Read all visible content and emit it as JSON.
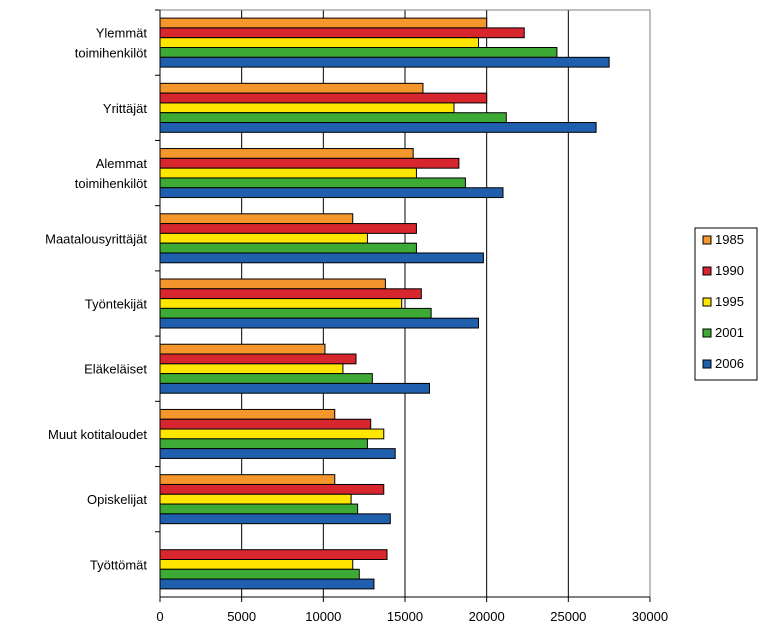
{
  "chart_data": {
    "type": "bar",
    "orientation": "horizontal",
    "categories": [
      [
        "Ylemmät",
        "toimihenkilöt"
      ],
      [
        "Yrittäjät"
      ],
      [
        "Alemmat",
        "toimihenkilöt"
      ],
      [
        "Maatalousyrittäjät"
      ],
      [
        "Työntekijät"
      ],
      [
        "Eläkeläiset"
      ],
      [
        "Muut kotitaloudet"
      ],
      [
        "Opiskelijat"
      ],
      [
        "Työttömät"
      ]
    ],
    "series": [
      {
        "name": "1985",
        "color": "#F5962D",
        "values": [
          20000,
          16100,
          15500,
          11800,
          13800,
          10100,
          10700,
          10700,
          0
        ]
      },
      {
        "name": "1990",
        "color": "#D8262E",
        "values": [
          22300,
          20000,
          18300,
          15700,
          16000,
          12000,
          12900,
          13700,
          13900
        ]
      },
      {
        "name": "1995",
        "color": "#FFE600",
        "values": [
          19500,
          18000,
          15700,
          12700,
          14800,
          11200,
          13700,
          11700,
          11800
        ]
      },
      {
        "name": "2001",
        "color": "#3DAA35",
        "values": [
          24300,
          21200,
          18700,
          15700,
          16600,
          13000,
          12700,
          12100,
          12200
        ]
      },
      {
        "name": "2006",
        "color": "#1F5FAD",
        "values": [
          27500,
          26700,
          21000,
          19800,
          19500,
          16500,
          14400,
          14100,
          13100
        ]
      }
    ],
    "xlim": [
      0,
      30000
    ],
    "xticks": [
      "0",
      "5000",
      "10000",
      "15000",
      "20000",
      "25000",
      "30000"
    ],
    "gridlines": "vertical",
    "legend_position": "right"
  }
}
